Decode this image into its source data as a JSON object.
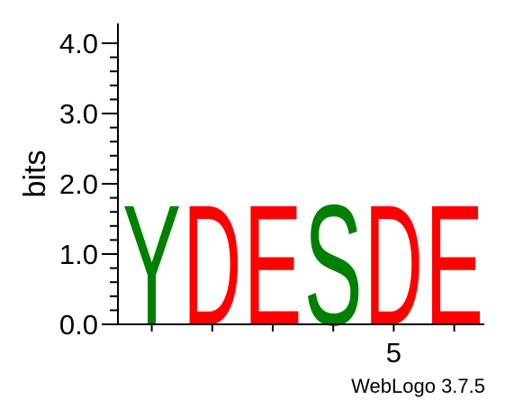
{
  "chart_data": {
    "type": "sequence-logo",
    "ylabel": "bits",
    "ylim": [
      0,
      4.0
    ],
    "y_ticks": [
      "0.0",
      "1.0",
      "2.0",
      "3.0",
      "4.0"
    ],
    "x_tick_labels": [
      {
        "position": 5,
        "label": "5"
      }
    ],
    "colors": {
      "Y": "#008000",
      "S": "#008000",
      "D": "#ff0000",
      "E": "#ff0000"
    },
    "positions": [
      {
        "position": 1,
        "letters": [
          {
            "letter": "Y",
            "bits": 1.75
          }
        ]
      },
      {
        "position": 2,
        "letters": [
          {
            "letter": "D",
            "bits": 1.75
          }
        ]
      },
      {
        "position": 3,
        "letters": [
          {
            "letter": "E",
            "bits": 1.75
          }
        ]
      },
      {
        "position": 4,
        "letters": [
          {
            "letter": "S",
            "bits": 1.75
          }
        ]
      },
      {
        "position": 5,
        "letters": [
          {
            "letter": "D",
            "bits": 1.75
          }
        ]
      },
      {
        "position": 6,
        "letters": [
          {
            "letter": "E",
            "bits": 1.75
          }
        ]
      }
    ]
  },
  "footer": {
    "credit": "WebLogo 3.7.5"
  }
}
